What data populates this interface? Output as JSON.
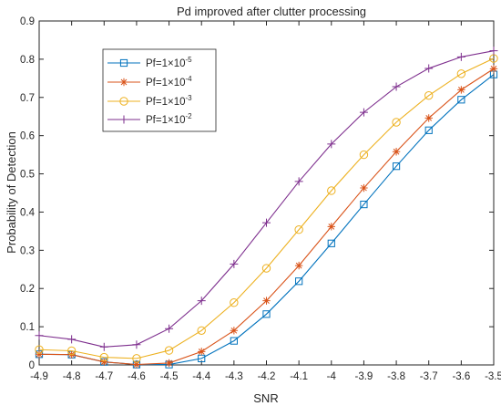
{
  "chart_data": {
    "type": "line",
    "title": "Pd improved after clutter processing",
    "xlabel": "SNR",
    "ylabel": "Probability of Detection",
    "xlim": [
      -4.9,
      -3.5
    ],
    "ylim": [
      0,
      0.9
    ],
    "xticks": [
      -4.9,
      -4.8,
      -4.7,
      -4.6,
      -4.5,
      -4.4,
      -4.3,
      -4.2,
      -4.1,
      -4.0,
      -3.9,
      -3.8,
      -3.7,
      -3.6,
      -3.5
    ],
    "xtick_labels": [
      "-4.9",
      "-4.8",
      "-4.7",
      "-4.6",
      "-4.5",
      "-4.4",
      "-4.3",
      "-4.2",
      "-4.1",
      "-4",
      "-3.9",
      "-3.8",
      "-3.7",
      "-3.6",
      "-3.5"
    ],
    "yticks": [
      0,
      0.1,
      0.2,
      0.3,
      0.4,
      0.5,
      0.6,
      0.7,
      0.8,
      0.9
    ],
    "ytick_labels": [
      "0",
      "0.1",
      "0.2",
      "0.3",
      "0.4",
      "0.5",
      "0.6",
      "0.7",
      "0.8",
      "0.9"
    ],
    "grid": false,
    "legend_position": "top-left",
    "x": [
      -4.9,
      -4.8,
      -4.7,
      -4.6,
      -4.5,
      -4.4,
      -4.3,
      -4.2,
      -4.1,
      -4.0,
      -3.9,
      -3.8,
      -3.7,
      -3.6,
      -3.5
    ],
    "series": [
      {
        "name": "Pf=1×10⁻⁵",
        "legend_base": "Pf=1×10",
        "legend_exp": "-5",
        "color": "#0072BD",
        "marker": "square",
        "values": [
          0.028,
          0.027,
          0.008,
          0.001,
          0.001,
          0.017,
          0.063,
          0.133,
          0.219,
          0.318,
          0.42,
          0.52,
          0.614,
          0.694,
          0.76
        ]
      },
      {
        "name": "Pf=1×10⁻⁴",
        "legend_base": "Pf=1×10",
        "legend_exp": "-4",
        "color": "#D95319",
        "marker": "asterisk",
        "values": [
          0.028,
          0.027,
          0.008,
          0.001,
          0.005,
          0.035,
          0.09,
          0.168,
          0.26,
          0.362,
          0.463,
          0.558,
          0.646,
          0.72,
          0.775
        ]
      },
      {
        "name": "Pf=1×10⁻³",
        "legend_base": "Pf=1×10",
        "legend_exp": "-3",
        "color": "#EDB120",
        "marker": "circle",
        "values": [
          0.04,
          0.037,
          0.02,
          0.017,
          0.038,
          0.09,
          0.163,
          0.253,
          0.354,
          0.456,
          0.55,
          0.635,
          0.705,
          0.762,
          0.802
        ]
      },
      {
        "name": "Pf=1×10⁻²",
        "legend_base": "Pf=1×10",
        "legend_exp": "-2",
        "color": "#7E2F8E",
        "marker": "plus",
        "values": [
          0.077,
          0.067,
          0.047,
          0.053,
          0.095,
          0.168,
          0.264,
          0.372,
          0.48,
          0.578,
          0.661,
          0.728,
          0.776,
          0.806,
          0.822
        ]
      }
    ]
  }
}
